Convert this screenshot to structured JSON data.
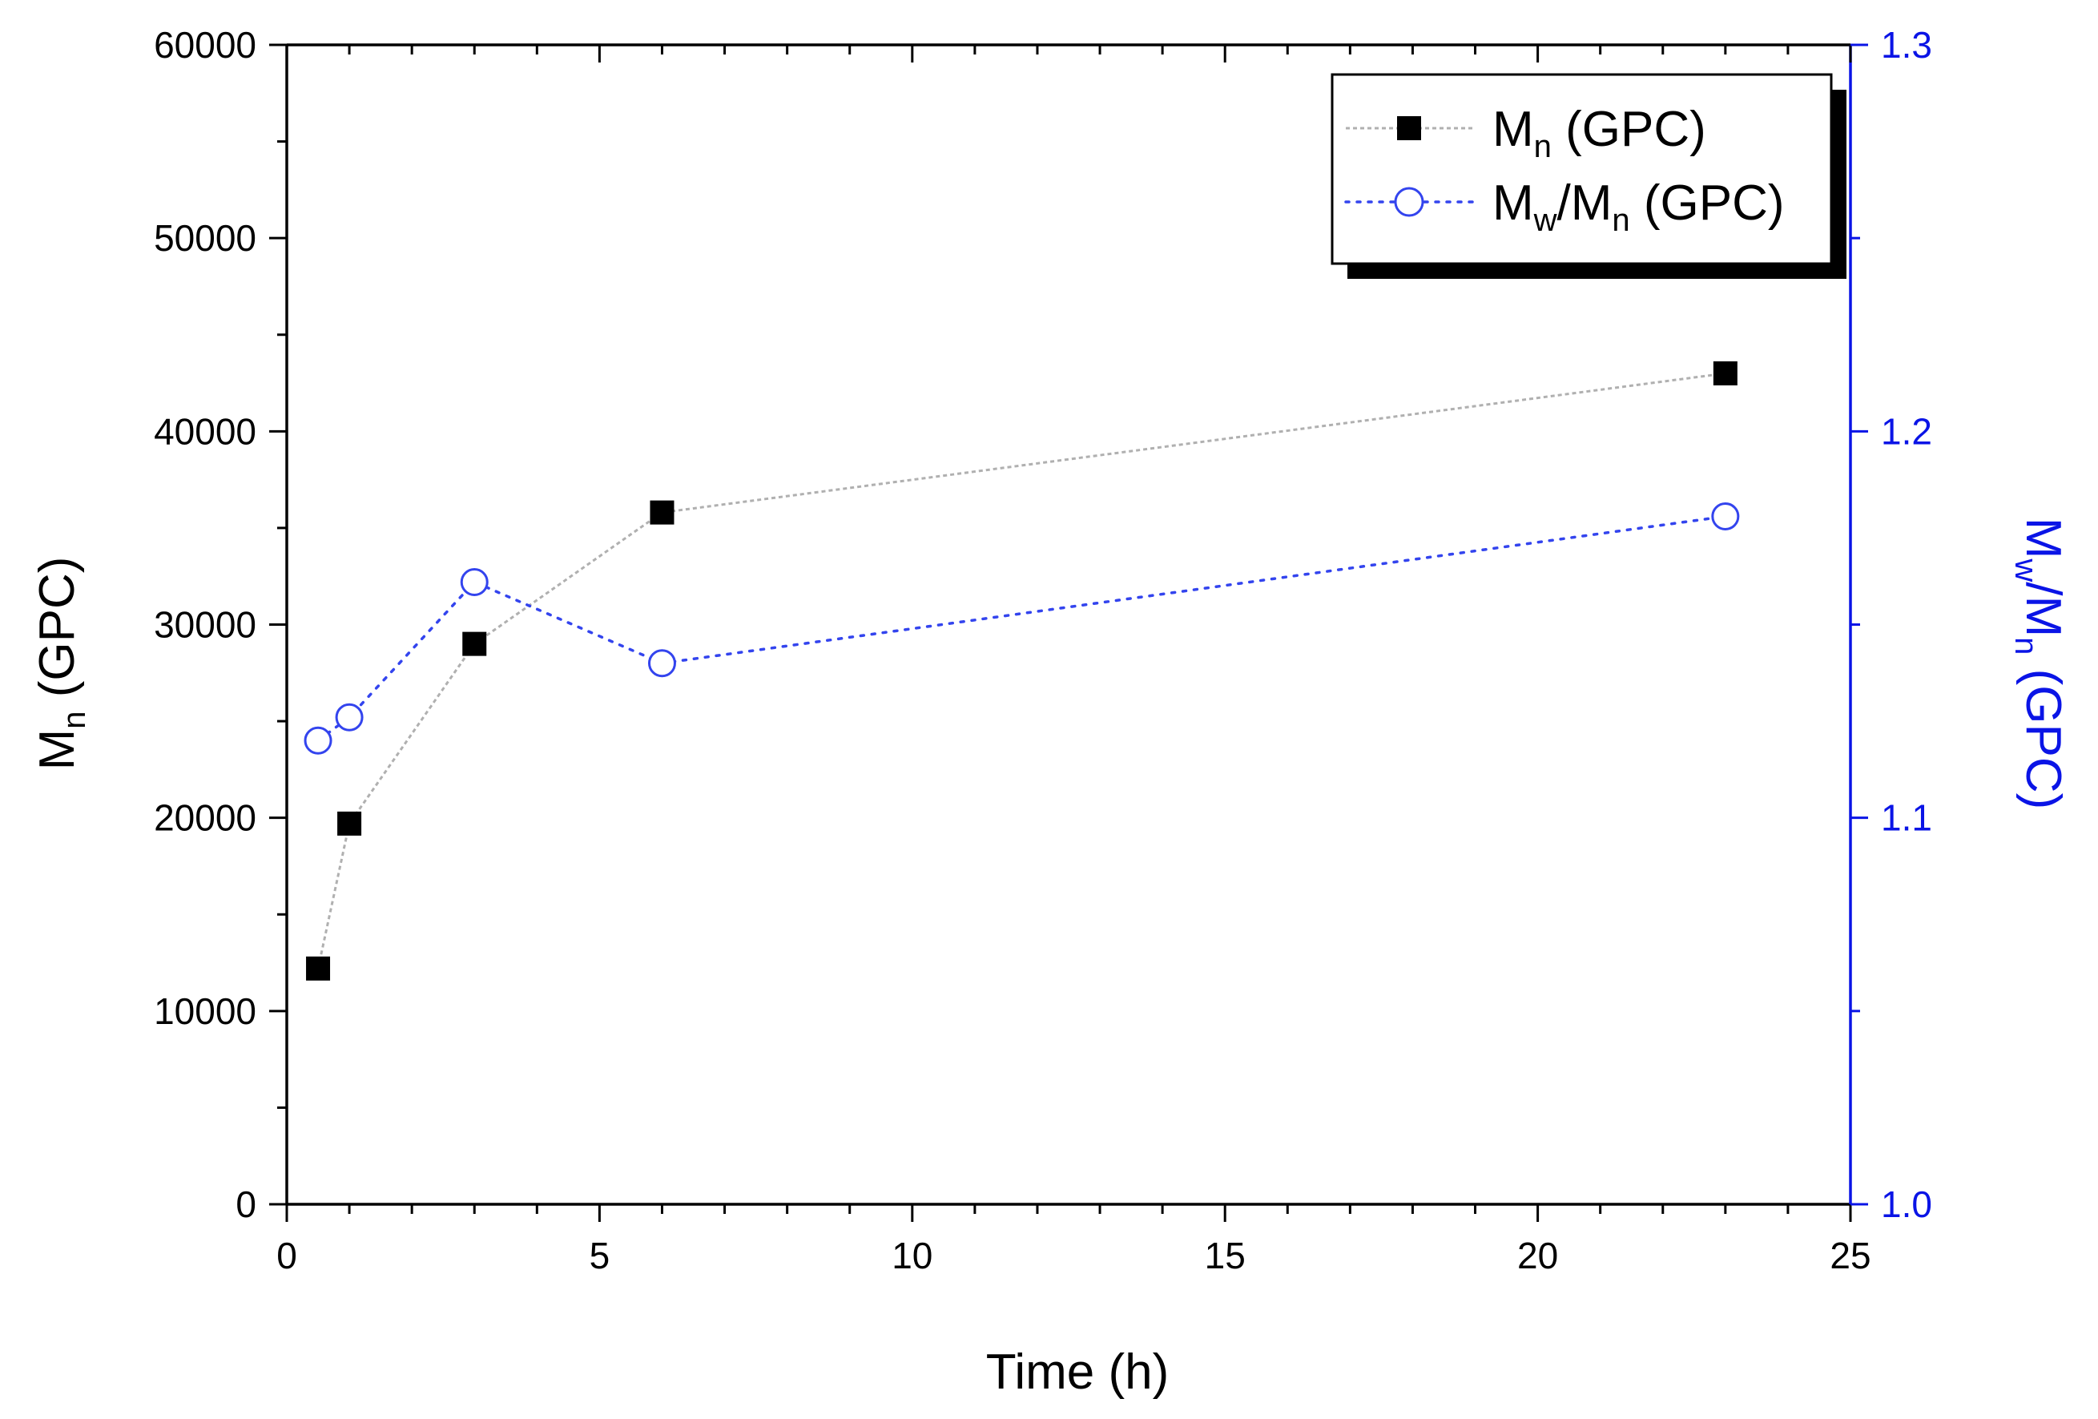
{
  "chart_data": {
    "type": "line",
    "title": "",
    "x": [
      0.5,
      1,
      3,
      6,
      23
    ],
    "xlim": [
      0,
      25
    ],
    "x_ticks": [
      0,
      5,
      10,
      15,
      20,
      25
    ],
    "xlabel": "Time (h)",
    "ylim_left": [
      0,
      60000
    ],
    "y_ticks_left": [
      0,
      10000,
      20000,
      30000,
      40000,
      50000,
      60000
    ],
    "ylabel_left": {
      "main": "M",
      "sub": "n",
      "rest": " (GPC)"
    },
    "ylim_right": [
      1.0,
      1.3
    ],
    "y_ticks_right": [
      1.0,
      1.1,
      1.2,
      1.3
    ],
    "y_tick_labels_right": [
      "1.0",
      "1.1",
      "1.2",
      "1.3"
    ],
    "ylabel_right": {
      "m1": "M",
      "s1": "w",
      "sl": "/M",
      "s2": "n",
      "rest": " (GPC)"
    },
    "series": [
      {
        "name": "Mn (GPC)",
        "axis": "left",
        "marker": "filled-square",
        "line": "dotted-gray",
        "color": "#000000",
        "line_color": "#b0b0b0",
        "values": [
          12200,
          19700,
          29000,
          35800,
          43000
        ]
      },
      {
        "name": "Mw/Mn (GPC)",
        "axis": "right",
        "marker": "open-circle",
        "line": "dotted",
        "color": "#3344ee",
        "line_color": "#3344ee",
        "values": [
          1.12,
          1.126,
          1.161,
          1.14,
          1.178
        ]
      }
    ],
    "legend": {
      "position": "top-right",
      "entry1": {
        "main": "M",
        "sub": "n",
        "rest": " (GPC)"
      },
      "entry2": {
        "m1": "M",
        "s1": "w",
        "sl": "/M",
        "s2": "n",
        "rest": " (GPC)"
      }
    },
    "colors": {
      "axis_left": "#000000",
      "axis_right": "#0a14e6"
    }
  }
}
